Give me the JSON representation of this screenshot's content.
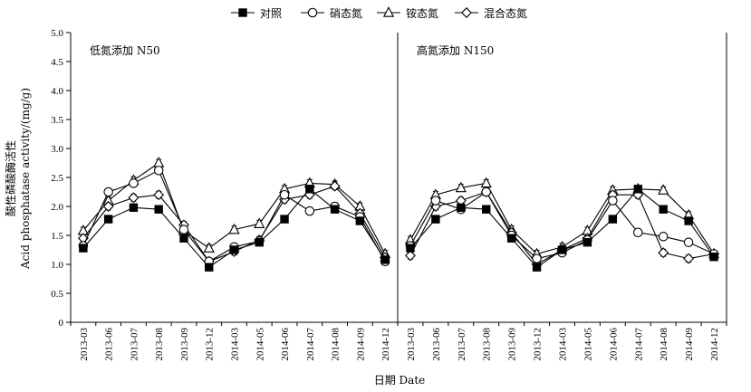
{
  "chart_data": {
    "type": "line",
    "ylabel_zh": "酸性磷酸酶活性",
    "ylabel_en": "Acid phosphatase activity/(mg/g)",
    "xlabel": "日期 Date",
    "ylim": [
      0,
      5.0
    ],
    "yticks": [
      "0",
      "0.5",
      "1.0",
      "1.5",
      "2.0",
      "2.5",
      "3.0",
      "3.5",
      "4.0",
      "4.5",
      "5.0"
    ],
    "categories": [
      "2013-03",
      "2013-06",
      "2013-07",
      "2013-08",
      "2013-09",
      "2013-12",
      "2014-03",
      "2014-05",
      "2014-06",
      "2014-07",
      "2014-08",
      "2014-09",
      "2014-12"
    ],
    "legend": [
      {
        "name": "对照",
        "marker": "square-filled"
      },
      {
        "name": "硝态氮",
        "marker": "circle-open"
      },
      {
        "name": "铵态氮",
        "marker": "triangle-open"
      },
      {
        "name": "混合态氮",
        "marker": "diamond-open"
      }
    ],
    "panels": [
      {
        "label": "低氮添加 N50",
        "series": [
          {
            "name": "对照",
            "values": [
              1.28,
              1.78,
              1.98,
              1.95,
              1.45,
              0.95,
              1.25,
              1.38,
              1.78,
              2.3,
              1.95,
              1.75,
              1.08
            ]
          },
          {
            "name": "硝态氮",
            "values": [
              1.32,
              2.25,
              2.4,
              2.62,
              1.6,
              1.05,
              1.3,
              1.4,
              2.2,
              1.92,
              2.0,
              1.82,
              1.05
            ]
          },
          {
            "name": "铵态氮",
            "values": [
              1.58,
              2.1,
              2.45,
              2.75,
              1.58,
              1.28,
              1.6,
              1.7,
              2.3,
              2.4,
              2.38,
              2.0,
              1.18
            ]
          },
          {
            "name": "混合态氮",
            "values": [
              1.45,
              2.0,
              2.15,
              2.2,
              1.68,
              1.05,
              1.22,
              1.42,
              2.12,
              2.2,
              2.35,
              1.88,
              1.12
            ]
          }
        ]
      },
      {
        "label": "高氮添加 N150",
        "series": [
          {
            "name": "对照",
            "values": [
              1.28,
              1.78,
              1.98,
              1.95,
              1.45,
              0.95,
              1.25,
              1.38,
              1.78,
              2.3,
              1.95,
              1.75,
              1.13
            ]
          },
          {
            "name": "硝态氮",
            "values": [
              1.32,
              2.1,
              1.95,
              2.25,
              1.5,
              1.1,
              1.2,
              1.42,
              2.1,
              1.55,
              1.48,
              1.38,
              1.18
            ]
          },
          {
            "name": "铵态氮",
            "values": [
              1.42,
              2.2,
              2.32,
              2.4,
              1.6,
              1.18,
              1.3,
              1.58,
              2.28,
              2.3,
              2.28,
              1.85,
              1.18
            ]
          },
          {
            "name": "混合态氮",
            "values": [
              1.15,
              2.0,
              2.1,
              2.25,
              1.55,
              1.0,
              1.25,
              1.45,
              2.2,
              2.2,
              1.2,
              1.1,
              1.18
            ]
          }
        ]
      }
    ]
  }
}
